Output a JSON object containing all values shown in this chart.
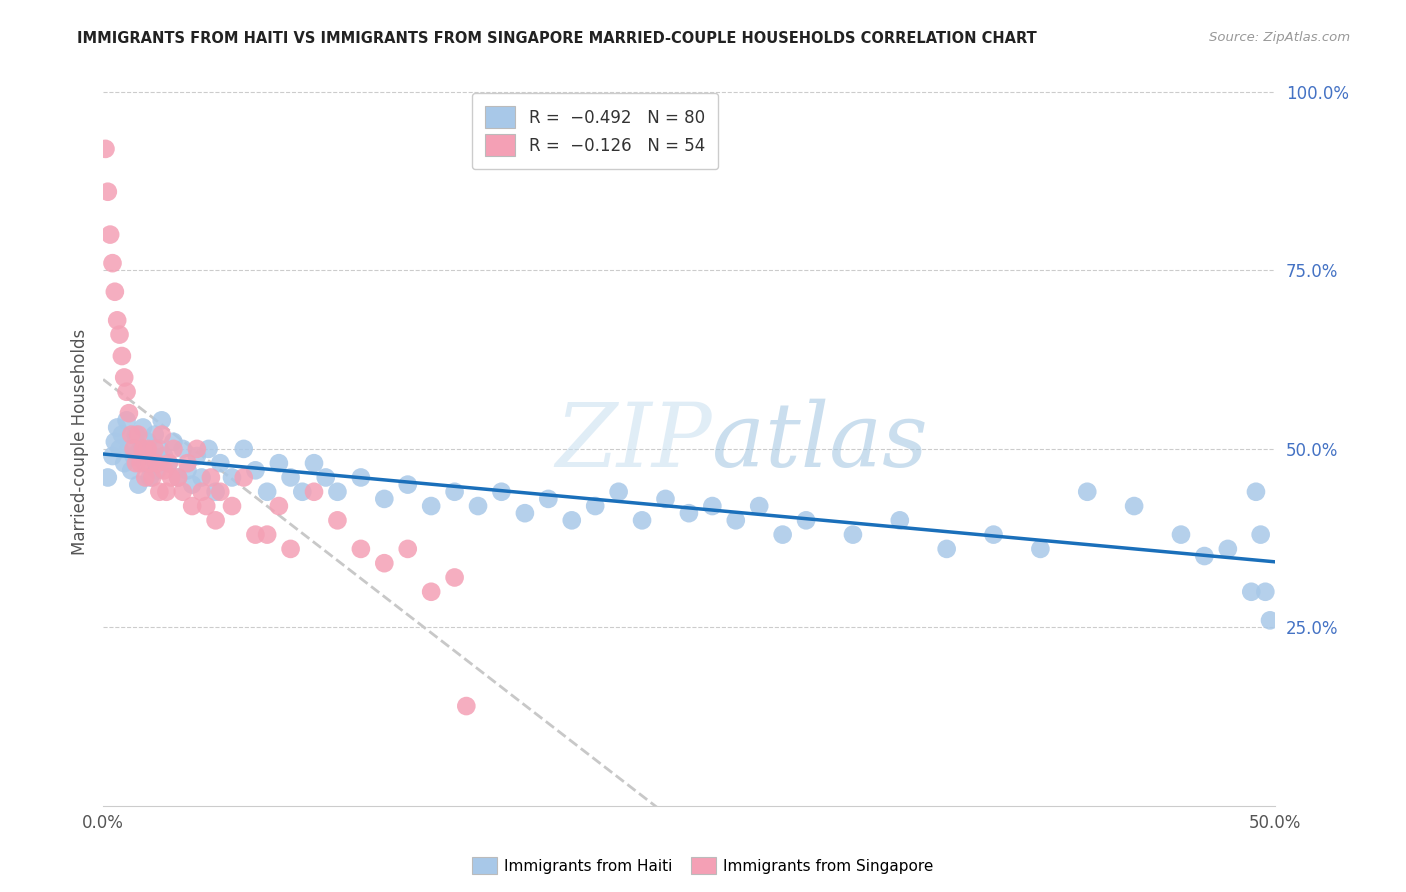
{
  "title": "IMMIGRANTS FROM HAITI VS IMMIGRANTS FROM SINGAPORE MARRIED-COUPLE HOUSEHOLDS CORRELATION CHART",
  "source": "Source: ZipAtlas.com",
  "ylabel_left": "Married-couple Households",
  "xlim": [
    0.0,
    0.5
  ],
  "ylim": [
    0.0,
    1.02
  ],
  "haiti_R": -0.492,
  "haiti_N": 80,
  "singapore_R": -0.126,
  "singapore_N": 54,
  "haiti_color": "#a8c8e8",
  "singapore_color": "#f4a0b5",
  "haiti_line_color": "#1a6fba",
  "singapore_line_color": "#c8c8c8",
  "watermark_color": "#ddeeff",
  "haiti_x": [
    0.002,
    0.004,
    0.005,
    0.006,
    0.007,
    0.008,
    0.009,
    0.01,
    0.011,
    0.012,
    0.013,
    0.014,
    0.015,
    0.016,
    0.017,
    0.018,
    0.019,
    0.02,
    0.021,
    0.022,
    0.023,
    0.024,
    0.025,
    0.026,
    0.028,
    0.03,
    0.032,
    0.034,
    0.036,
    0.038,
    0.04,
    0.042,
    0.045,
    0.048,
    0.05,
    0.055,
    0.06,
    0.065,
    0.07,
    0.075,
    0.08,
    0.085,
    0.09,
    0.095,
    0.1,
    0.11,
    0.12,
    0.13,
    0.14,
    0.15,
    0.16,
    0.17,
    0.18,
    0.19,
    0.2,
    0.21,
    0.22,
    0.23,
    0.24,
    0.25,
    0.26,
    0.27,
    0.28,
    0.29,
    0.3,
    0.32,
    0.34,
    0.36,
    0.38,
    0.4,
    0.42,
    0.44,
    0.46,
    0.47,
    0.48,
    0.49,
    0.492,
    0.494,
    0.496,
    0.498
  ],
  "haiti_y": [
    0.46,
    0.49,
    0.51,
    0.53,
    0.5,
    0.52,
    0.48,
    0.54,
    0.5,
    0.47,
    0.49,
    0.52,
    0.45,
    0.5,
    0.53,
    0.48,
    0.51,
    0.46,
    0.49,
    0.52,
    0.47,
    0.5,
    0.54,
    0.49,
    0.48,
    0.51,
    0.46,
    0.5,
    0.47,
    0.45,
    0.49,
    0.46,
    0.5,
    0.44,
    0.48,
    0.46,
    0.5,
    0.47,
    0.44,
    0.48,
    0.46,
    0.44,
    0.48,
    0.46,
    0.44,
    0.46,
    0.43,
    0.45,
    0.42,
    0.44,
    0.42,
    0.44,
    0.41,
    0.43,
    0.4,
    0.42,
    0.44,
    0.4,
    0.43,
    0.41,
    0.42,
    0.4,
    0.42,
    0.38,
    0.4,
    0.38,
    0.4,
    0.36,
    0.38,
    0.36,
    0.44,
    0.42,
    0.38,
    0.35,
    0.36,
    0.3,
    0.44,
    0.38,
    0.3,
    0.26
  ],
  "singapore_x": [
    0.001,
    0.002,
    0.003,
    0.004,
    0.005,
    0.006,
    0.007,
    0.008,
    0.009,
    0.01,
    0.011,
    0.012,
    0.013,
    0.014,
    0.015,
    0.016,
    0.017,
    0.018,
    0.019,
    0.02,
    0.021,
    0.022,
    0.023,
    0.024,
    0.025,
    0.026,
    0.027,
    0.028,
    0.029,
    0.03,
    0.032,
    0.034,
    0.036,
    0.038,
    0.04,
    0.042,
    0.044,
    0.046,
    0.048,
    0.05,
    0.055,
    0.06,
    0.065,
    0.07,
    0.075,
    0.08,
    0.09,
    0.1,
    0.11,
    0.12,
    0.13,
    0.14,
    0.15,
    0.155
  ],
  "singapore_y": [
    0.92,
    0.86,
    0.8,
    0.76,
    0.72,
    0.68,
    0.66,
    0.63,
    0.6,
    0.58,
    0.55,
    0.52,
    0.5,
    0.48,
    0.52,
    0.48,
    0.5,
    0.46,
    0.5,
    0.48,
    0.46,
    0.5,
    0.48,
    0.44,
    0.52,
    0.47,
    0.44,
    0.48,
    0.46,
    0.5,
    0.46,
    0.44,
    0.48,
    0.42,
    0.5,
    0.44,
    0.42,
    0.46,
    0.4,
    0.44,
    0.42,
    0.46,
    0.38,
    0.38,
    0.42,
    0.36,
    0.44,
    0.4,
    0.36,
    0.34,
    0.36,
    0.3,
    0.32,
    0.14
  ]
}
